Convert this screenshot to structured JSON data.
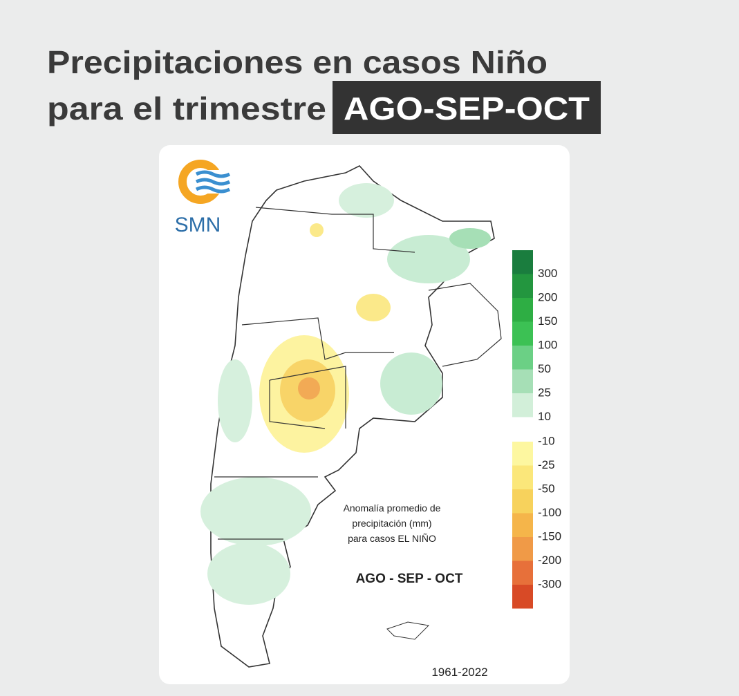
{
  "header": {
    "title_line1": "Precipitaciones en casos Niño",
    "title_line2": "para el trimestre",
    "highlight": "AGO-SEP-OCT"
  },
  "logo": {
    "text": "SMN"
  },
  "map": {
    "annotation": [
      "Anomalía promedio de",
      "precipitación (mm)",
      "para casos EL NIÑO"
    ],
    "period": "AGO - SEP - OCT",
    "years": "1961-2022",
    "legend_positive": [
      {
        "value": 300,
        "color": "#1a7d3e"
      },
      {
        "value": 200,
        "color": "#23963f"
      },
      {
        "value": 150,
        "color": "#2eae44"
      },
      {
        "value": 100,
        "color": "#3cc154"
      },
      {
        "value": 50,
        "color": "#6bd085"
      },
      {
        "value": 25,
        "color": "#a6dfb6"
      },
      {
        "value": 10,
        "color": "#d2efd9"
      }
    ],
    "legend_negative": [
      {
        "value": -10,
        "color": "#fdf7a0"
      },
      {
        "value": -25,
        "color": "#fbe77a"
      },
      {
        "value": -50,
        "color": "#f7d25c"
      },
      {
        "value": -100,
        "color": "#f5b54a"
      },
      {
        "value": -150,
        "color": "#f09a47"
      },
      {
        "value": -200,
        "color": "#e7703a"
      },
      {
        "value": -300,
        "color": "#d84a26"
      }
    ]
  }
}
